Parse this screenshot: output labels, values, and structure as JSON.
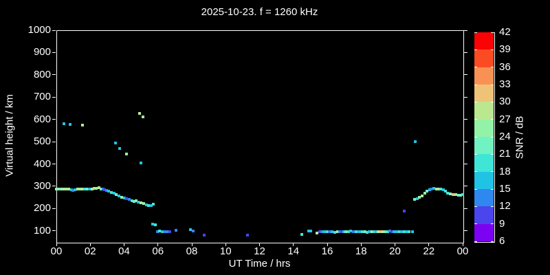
{
  "title": "2025-10-23. f = 1260 kHz",
  "colors": {
    "background": "#000000",
    "frame": "#ffffff",
    "text": "#ffffff"
  },
  "chart_data": {
    "type": "scatter",
    "title": "2025-10-23. f = 1260 kHz",
    "xlabel": "UT Time / hrs",
    "ylabel": "Virtual height / km",
    "xlim": [
      0,
      24
    ],
    "ylim": [
      50,
      1000
    ],
    "grid": false,
    "x_ticks": [
      {
        "value": 0,
        "label": "00"
      },
      {
        "value": 2,
        "label": "02"
      },
      {
        "value": 4,
        "label": "04"
      },
      {
        "value": 6,
        "label": "06"
      },
      {
        "value": 8,
        "label": "08"
      },
      {
        "value": 10,
        "label": "10"
      },
      {
        "value": 12,
        "label": "12"
      },
      {
        "value": 14,
        "label": "14"
      },
      {
        "value": 16,
        "label": "16"
      },
      {
        "value": 18,
        "label": "18"
      },
      {
        "value": 20,
        "label": "20"
      },
      {
        "value": 22,
        "label": "22"
      },
      {
        "value": 24,
        "label": "00"
      }
    ],
    "y_ticks": [
      {
        "value": 100,
        "label": "100"
      },
      {
        "value": 200,
        "label": "200"
      },
      {
        "value": 300,
        "label": "300"
      },
      {
        "value": 400,
        "label": "400"
      },
      {
        "value": 500,
        "label": "500"
      },
      {
        "value": 600,
        "label": "600"
      },
      {
        "value": 700,
        "label": "700"
      },
      {
        "value": 800,
        "label": "800"
      },
      {
        "value": 900,
        "label": "900"
      },
      {
        "value": 1000,
        "label": "1000"
      }
    ],
    "colorbar": {
      "label": "SNR / dB",
      "min": 6,
      "max": 42,
      "step": 3,
      "tick_labels": [
        "6",
        "9",
        "12",
        "15",
        "18",
        "21",
        "24",
        "27",
        "30",
        "33",
        "36",
        "39",
        "42"
      ],
      "band_colors_low_to_high": [
        "#7c02f2",
        "#4b45ee",
        "#2f87f0",
        "#21c3e5",
        "#3fe6d6",
        "#71f2c3",
        "#92f2a8",
        "#bbe78f",
        "#eec378",
        "#fa9154",
        "#fb4b23",
        "#fb0305"
      ]
    },
    "points": [
      [
        0.0,
        287,
        28
      ],
      [
        0.1,
        288,
        25
      ],
      [
        0.22,
        287,
        22
      ],
      [
        0.35,
        288,
        28
      ],
      [
        0.47,
        287,
        28
      ],
      [
        0.6,
        288,
        25
      ],
      [
        0.72,
        287,
        28
      ],
      [
        0.88,
        283,
        16
      ],
      [
        0.98,
        281,
        13
      ],
      [
        1.1,
        284,
        16
      ],
      [
        1.25,
        286,
        28
      ],
      [
        1.4,
        287,
        25
      ],
      [
        1.55,
        288,
        28
      ],
      [
        1.68,
        287,
        19
      ],
      [
        1.82,
        288,
        22
      ],
      [
        1.95,
        287,
        16
      ],
      [
        2.1,
        289,
        28
      ],
      [
        2.25,
        292,
        28
      ],
      [
        2.35,
        290,
        25
      ],
      [
        2.5,
        293,
        28
      ],
      [
        2.62,
        289,
        22
      ],
      [
        2.75,
        286,
        13
      ],
      [
        2.85,
        284,
        10
      ],
      [
        2.95,
        282,
        13
      ],
      [
        3.1,
        278,
        16
      ],
      [
        3.25,
        273,
        19
      ],
      [
        3.4,
        268,
        16
      ],
      [
        3.55,
        262,
        22
      ],
      [
        3.7,
        257,
        16
      ],
      [
        3.85,
        251,
        25
      ],
      [
        4.0,
        246,
        16
      ],
      [
        4.15,
        243,
        10
      ],
      [
        4.3,
        240,
        13
      ],
      [
        4.45,
        236,
        19
      ],
      [
        4.6,
        232,
        22
      ],
      [
        4.72,
        234,
        25
      ],
      [
        4.85,
        228,
        16
      ],
      [
        5.0,
        226,
        28
      ],
      [
        5.15,
        222,
        25
      ],
      [
        5.3,
        218,
        16
      ],
      [
        5.45,
        212,
        19
      ],
      [
        5.6,
        214,
        16
      ],
      [
        5.72,
        219,
        19
      ],
      [
        0.43,
        582,
        16
      ],
      [
        0.82,
        576,
        16
      ],
      [
        1.54,
        574,
        28
      ],
      [
        3.5,
        494,
        16
      ],
      [
        3.74,
        469,
        16
      ],
      [
        4.15,
        446,
        25
      ],
      [
        4.9,
        628,
        28
      ],
      [
        5.1,
        610,
        25
      ],
      [
        5.0,
        405,
        16
      ],
      [
        5.67,
        130,
        16
      ],
      [
        5.83,
        127,
        19
      ],
      [
        5.97,
        95,
        13
      ],
      [
        6.1,
        98,
        19
      ],
      [
        6.25,
        97,
        16
      ],
      [
        6.4,
        95,
        13
      ],
      [
        6.55,
        95,
        13
      ],
      [
        6.7,
        95,
        10
      ],
      [
        7.05,
        102,
        13
      ],
      [
        7.9,
        105,
        16
      ],
      [
        8.07,
        99,
        13
      ],
      [
        8.72,
        80,
        10
      ],
      [
        11.3,
        81,
        10
      ],
      [
        14.5,
        84,
        19
      ],
      [
        14.9,
        98,
        16
      ],
      [
        15.02,
        98,
        16
      ],
      [
        15.39,
        89,
        28
      ],
      [
        15.55,
        97,
        10
      ],
      [
        15.67,
        96,
        13
      ],
      [
        15.78,
        97,
        16
      ],
      [
        15.9,
        97,
        16
      ],
      [
        16.02,
        95,
        19
      ],
      [
        16.14,
        96,
        13
      ],
      [
        16.3,
        97,
        16
      ],
      [
        16.45,
        94,
        19
      ],
      [
        16.6,
        96,
        25
      ],
      [
        16.72,
        97,
        13
      ],
      [
        16.85,
        96,
        10
      ],
      [
        16.97,
        97,
        16
      ],
      [
        17.1,
        95,
        22
      ],
      [
        17.25,
        96,
        19
      ],
      [
        17.4,
        98,
        16
      ],
      [
        17.55,
        95,
        13
      ],
      [
        17.7,
        97,
        19
      ],
      [
        17.82,
        96,
        16
      ],
      [
        17.95,
        95,
        16
      ],
      [
        18.08,
        97,
        19
      ],
      [
        18.22,
        96,
        22
      ],
      [
        18.35,
        94,
        19
      ],
      [
        18.48,
        96,
        16
      ],
      [
        18.62,
        97,
        25
      ],
      [
        18.75,
        96,
        19
      ],
      [
        18.88,
        95,
        16
      ],
      [
        19.0,
        96,
        28
      ],
      [
        19.15,
        97,
        31
      ],
      [
        19.3,
        96,
        28
      ],
      [
        19.45,
        97,
        22
      ],
      [
        19.58,
        96,
        19
      ],
      [
        19.7,
        98,
        13
      ],
      [
        19.82,
        96,
        10
      ],
      [
        19.95,
        97,
        16
      ],
      [
        20.1,
        96,
        16
      ],
      [
        20.25,
        95,
        19
      ],
      [
        20.4,
        96,
        16
      ],
      [
        20.55,
        97,
        19
      ],
      [
        20.7,
        96,
        16
      ],
      [
        20.85,
        95,
        19
      ],
      [
        21.05,
        96,
        16
      ],
      [
        20.56,
        188,
        10
      ],
      [
        21.21,
        500,
        16
      ],
      [
        21.15,
        241,
        22
      ],
      [
        21.3,
        245,
        16
      ],
      [
        21.45,
        252,
        25
      ],
      [
        21.6,
        258,
        28
      ],
      [
        21.75,
        270,
        25
      ],
      [
        21.9,
        277,
        22
      ],
      [
        22.05,
        283,
        16
      ],
      [
        22.15,
        287,
        13
      ],
      [
        22.3,
        290,
        16
      ],
      [
        22.45,
        288,
        25
      ],
      [
        22.6,
        286,
        28
      ],
      [
        22.72,
        289,
        19
      ],
      [
        22.85,
        284,
        16
      ],
      [
        23.0,
        278,
        19
      ],
      [
        23.12,
        268,
        19
      ],
      [
        23.28,
        267,
        25
      ],
      [
        23.45,
        262,
        31
      ],
      [
        23.6,
        264,
        25
      ],
      [
        23.75,
        260,
        22
      ],
      [
        23.88,
        261,
        22
      ],
      [
        23.98,
        262,
        19
      ]
    ]
  }
}
